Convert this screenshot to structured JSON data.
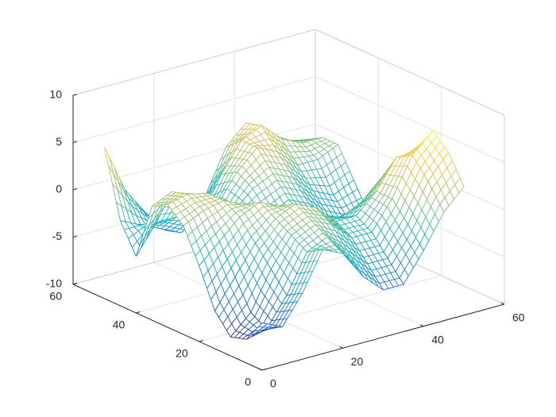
{
  "chart_data": {
    "type": "mesh",
    "x": [
      0,
      5,
      10,
      15,
      20,
      25,
      30,
      35,
      40,
      45,
      50
    ],
    "y": [
      0,
      5,
      10,
      15,
      20,
      25,
      30,
      35,
      40,
      45,
      50
    ],
    "z": [
      [
        -5,
        -6,
        -3,
        1,
        0,
        -3,
        -5,
        -5,
        -2,
        1.5,
        3.6
      ],
      [
        -7.5,
        -7,
        -4,
        0,
        1,
        -1,
        -3,
        -3,
        0,
        4,
        6.5
      ],
      [
        -8,
        -6,
        -2,
        1,
        2,
        1,
        -1,
        -1,
        2,
        6,
        8
      ],
      [
        -6,
        -3,
        0,
        2,
        3,
        2,
        0,
        0,
        2,
        5,
        5
      ],
      [
        -2,
        0,
        2,
        3,
        2,
        1,
        0,
        -1,
        0,
        2,
        1
      ],
      [
        1.5,
        2.5,
        3,
        2,
        0,
        -1,
        -1,
        -2,
        -3,
        -3,
        -3
      ],
      [
        3,
        3.5,
        3,
        1,
        -1,
        -1,
        0,
        -1,
        -3,
        -4,
        -4
      ],
      [
        2,
        3,
        2,
        0,
        -1,
        1,
        2,
        1,
        -1,
        -2,
        -1
      ],
      [
        -4,
        -1,
        -1,
        -2,
        -1,
        2,
        4,
        3,
        1,
        1,
        2
      ],
      [
        -1,
        -2,
        -3,
        -4,
        -3,
        1,
        4,
        5,
        3,
        2,
        2
      ],
      [
        6,
        1,
        -2,
        -4.5,
        -5,
        -2,
        2.5,
        4.5,
        3,
        1.5,
        1
      ]
    ],
    "xlim": [
      0,
      60
    ],
    "ylim": [
      0,
      60
    ],
    "zlim": [
      -10,
      10
    ],
    "xticks": [
      0,
      20,
      40,
      60
    ],
    "yticks": [
      0,
      20,
      40,
      60
    ],
    "zticks": [
      -10,
      -5,
      0,
      5,
      10
    ],
    "grid": true,
    "colormap": [
      "#352a87",
      "#0f5cdd",
      "#1481d6",
      "#06a4ca",
      "#2eb7a4",
      "#87bf77",
      "#d1bb59",
      "#fec832",
      "#f9fb0e"
    ]
  }
}
